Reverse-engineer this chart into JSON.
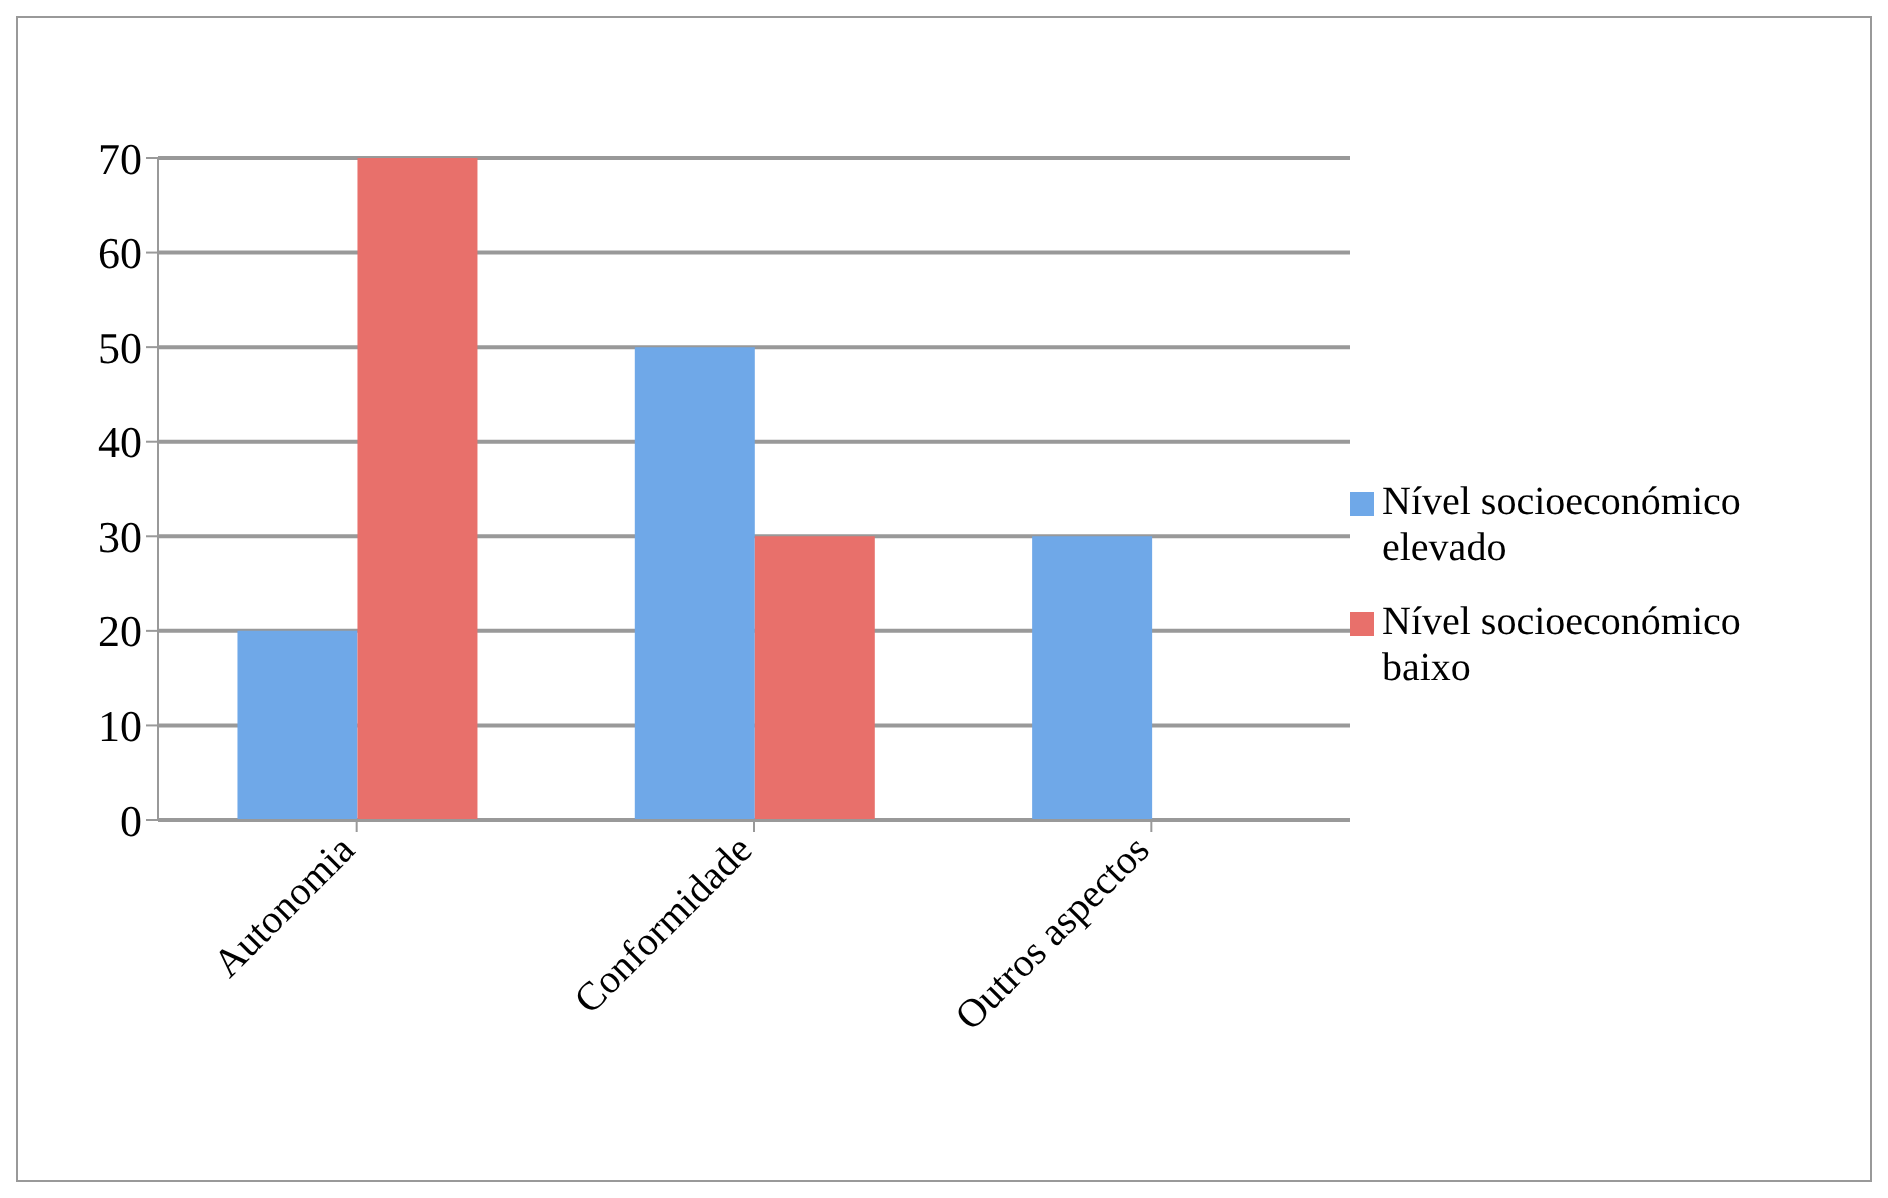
{
  "chart_data": {
    "type": "bar",
    "categories": [
      "Autonomia",
      "Conformidade",
      "Outros aspectos"
    ],
    "series": [
      {
        "name": "Nível socioeconómico elevado",
        "color": "#6fa8e8",
        "values": [
          20,
          50,
          30
        ]
      },
      {
        "name": "Nível socioeconómico baixo",
        "color": "#e8706b",
        "values": [
          70,
          30,
          0
        ]
      }
    ],
    "ylim": [
      0,
      70
    ],
    "yticks": [
      0,
      10,
      20,
      30,
      40,
      50,
      60,
      70
    ],
    "grid": "y",
    "legend": "right"
  }
}
